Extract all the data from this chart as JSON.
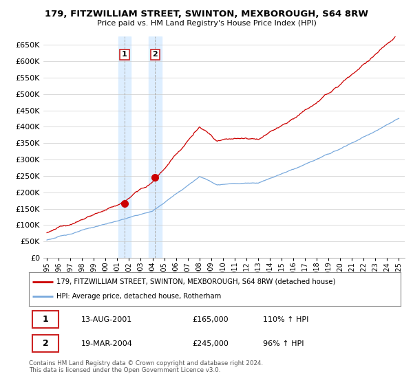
{
  "title": "179, FITZWILLIAM STREET, SWINTON, MEXBOROUGH, S64 8RW",
  "subtitle": "Price paid vs. HM Land Registry's House Price Index (HPI)",
  "legend_line1": "179, FITZWILLIAM STREET, SWINTON, MEXBOROUGH, S64 8RW (detached house)",
  "legend_line2": "HPI: Average price, detached house, Rotherham",
  "red_color": "#cc0000",
  "blue_color": "#7aaadd",
  "sale1_date": "13-AUG-2001",
  "sale1_price": "£165,000",
  "sale1_hpi": "110% ↑ HPI",
  "sale2_date": "19-MAR-2004",
  "sale2_price": "£245,000",
  "sale2_hpi": "96% ↑ HPI",
  "footer": "Contains HM Land Registry data © Crown copyright and database right 2024.\nThis data is licensed under the Open Government Licence v3.0.",
  "ylim": [
    0,
    675000
  ],
  "yticks": [
    0,
    50000,
    100000,
    150000,
    200000,
    250000,
    300000,
    350000,
    400000,
    450000,
    500000,
    550000,
    600000,
    650000
  ],
  "sale1_year": 2001.62,
  "sale1_value": 165000,
  "sale2_year": 2004.22,
  "sale2_value": 245000,
  "background_color": "#ffffff",
  "highlight_color": "#ddeeff"
}
